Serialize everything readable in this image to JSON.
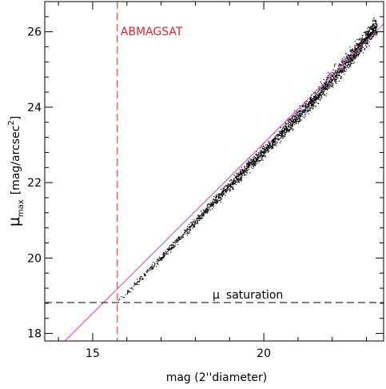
{
  "chart_data": {
    "type": "scatter",
    "xlabel": "mag  (2''diameter)",
    "ylabel_main": "μ",
    "ylabel_sub": "max",
    "ylabel_unit": "[mag/arcsec",
    "ylabel_sup": "2",
    "ylabel_close": "]",
    "xlim": [
      13.6,
      23.5
    ],
    "ylim": [
      17.8,
      26.8
    ],
    "x_ticks": [
      15,
      20
    ],
    "x_tick_labels": [
      "15",
      "20"
    ],
    "x_minor_step": 1,
    "y_ticks": [
      18,
      20,
      22,
      24,
      26
    ],
    "y_tick_labels": [
      "18",
      "20",
      "22",
      "24",
      "26"
    ],
    "y_minor_step": 0.4,
    "grid": false,
    "colors": {
      "points": "#000000",
      "fit_line": "#d63bd6",
      "abmagsat_line": "#e0282e",
      "saturation_line": "#000000"
    },
    "fit_line": {
      "x1": 13.8,
      "y1": 17.45,
      "x2": 23.6,
      "y2": 26.3
    },
    "abmagsat": {
      "x": 15.72,
      "label": "ABMAGSAT"
    },
    "saturation": {
      "y": 18.82,
      "label_greek": "μ",
      "label_text": "saturation"
    },
    "series": [
      {
        "trend": [
          [
            15.7,
            18.85
          ],
          [
            16.5,
            19.55
          ],
          [
            17.5,
            20.5
          ],
          [
            18.5,
            21.45
          ],
          [
            19.5,
            22.4
          ],
          [
            20.5,
            23.3
          ],
          [
            21.5,
            24.25
          ],
          [
            22.5,
            25.3
          ],
          [
            23.2,
            26.1
          ]
        ],
        "x_range": [
          15.7,
          23.3
        ],
        "count": 2600
      }
    ]
  }
}
